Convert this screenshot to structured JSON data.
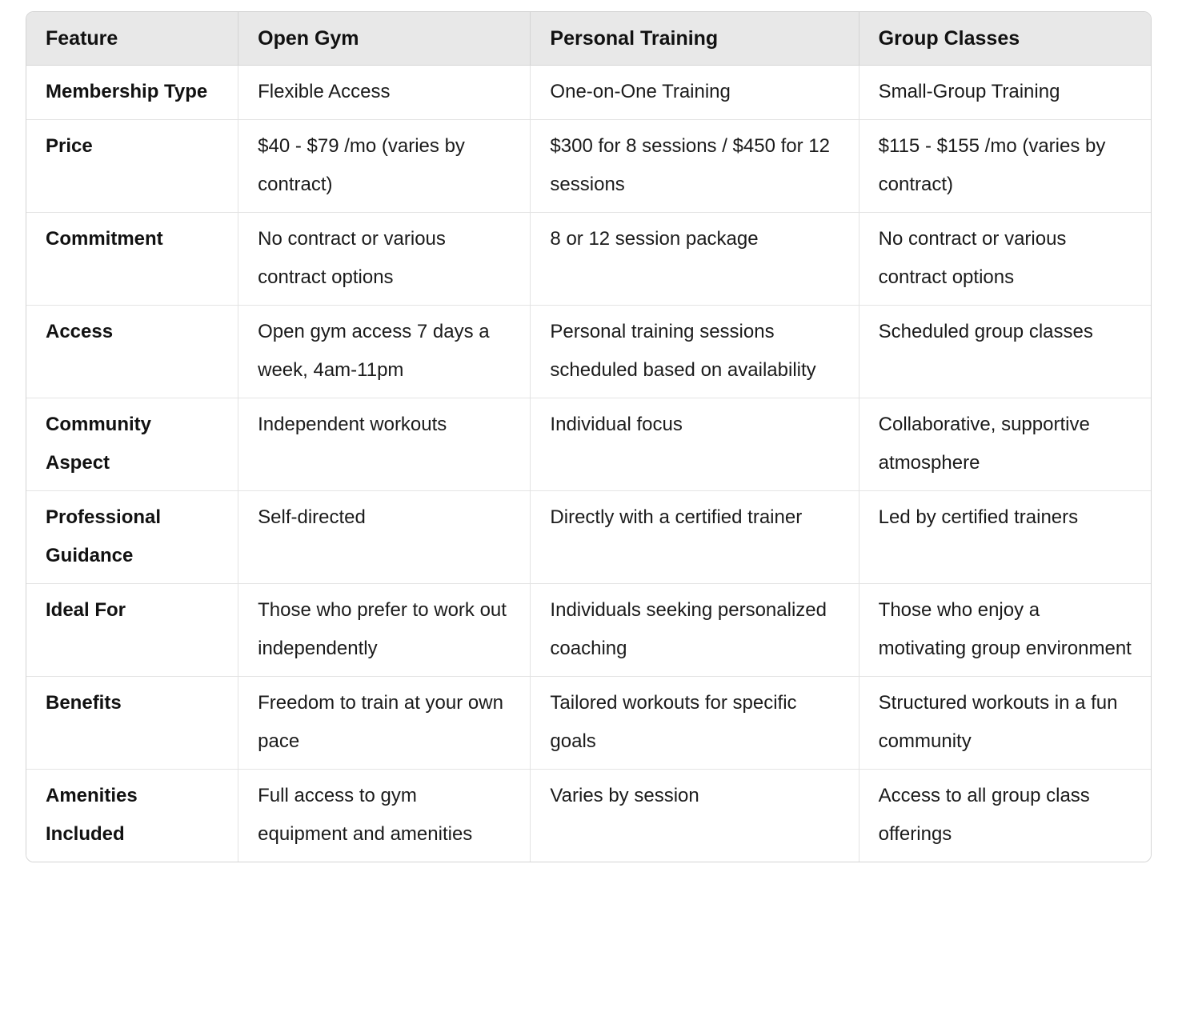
{
  "table": {
    "columns": [
      "Feature",
      "Open Gym",
      "Personal Training",
      "Group Classes"
    ],
    "rows": [
      [
        "Membership Type",
        "Flexible Access",
        "One-on-One Training",
        "Small-Group Training"
      ],
      [
        "Price",
        "$40 - $79 /mo (varies by contract)",
        "$300 for 8 sessions / $450 for 12 sessions",
        "$115 - $155 /mo (varies by contract)"
      ],
      [
        "Commitment",
        "No contract or various contract options",
        "8 or 12 session package",
        "No contract or various contract options"
      ],
      [
        "Access",
        "Open gym access 7 days a week, 4am-11pm",
        "Personal training sessions scheduled based on availability",
        "Scheduled group classes"
      ],
      [
        "Community Aspect",
        "Independent workouts",
        "Individual focus",
        "Collaborative, supportive atmosphere"
      ],
      [
        "Professional Guidance",
        "Self-directed",
        "Directly with a certified trainer",
        "Led by certified trainers"
      ],
      [
        "Ideal For",
        "Those who prefer to work out independently",
        "Individuals seeking personalized coaching",
        "Those who enjoy a motivating group environment"
      ],
      [
        "Benefits",
        "Freedom to train at your own pace",
        "Tailored workouts for specific goals",
        "Structured workouts in a fun community"
      ],
      [
        "Amenities Included",
        "Full access to gym equipment and amenities",
        "Varies by session",
        "Access to all group class offerings"
      ]
    ]
  },
  "colors": {
    "header_background": "#e8e8e8",
    "outer_border": "#d4d4d4",
    "inner_border": "#e3e3e3",
    "text": "#1b1b1b"
  }
}
